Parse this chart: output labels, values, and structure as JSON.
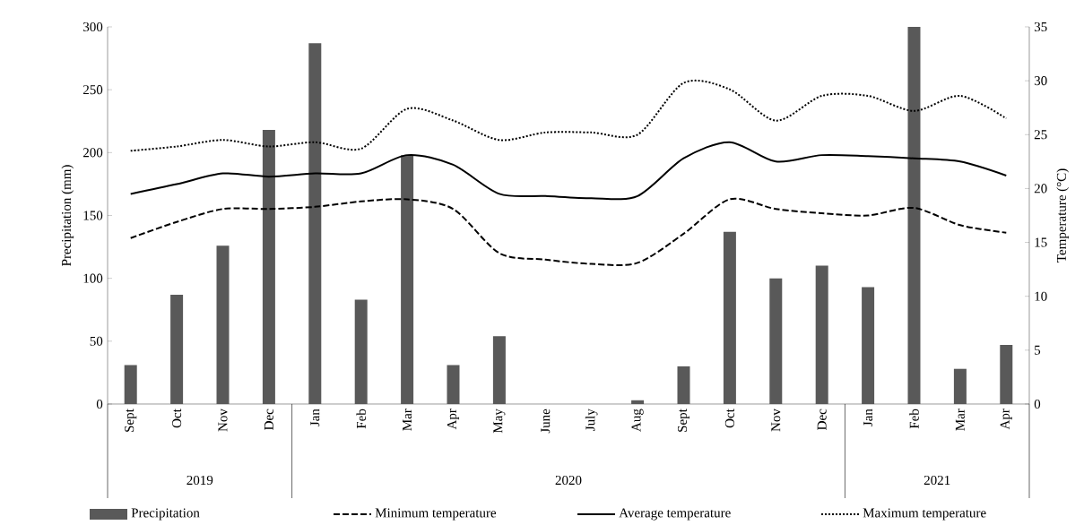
{
  "chart_data": {
    "type": "bar",
    "ylabel": "Precipitation (mm)",
    "y2label": "Temperature (°C)",
    "categories": [
      "Sept",
      "Oct",
      "Nov",
      "Dec",
      "Jan",
      "Feb",
      "Mar",
      "Apr",
      "May",
      "June",
      "July",
      "Aug",
      "Sept",
      "Oct",
      "Nov",
      "Dec",
      "Jan",
      "Feb",
      "Mar",
      "Apr"
    ],
    "series": [
      {
        "name": "Precipitation",
        "color": "#595959",
        "values": [
          31,
          87,
          126,
          218,
          287,
          83,
          198,
          31,
          54,
          0,
          0,
          3,
          30,
          137,
          100,
          110,
          93,
          300,
          28,
          47
        ]
      },
      {
        "name": "Minimum temperature",
        "type": "line",
        "axis": "y2",
        "line_style": "dashed",
        "color": "#000000",
        "values": [
          15.4,
          16.9,
          18.1,
          18.1,
          18.3,
          18.8,
          19.0,
          18.1,
          14.0,
          13.4,
          13.0,
          13.1,
          15.8,
          19.0,
          18.1,
          17.7,
          17.5,
          18.2,
          16.6,
          15.9
        ]
      },
      {
        "name": "Average temperature",
        "type": "line",
        "axis": "y2",
        "line_style": "solid",
        "color": "#000000",
        "values": [
          19.5,
          20.4,
          21.4,
          21.1,
          21.4,
          21.4,
          23.1,
          22.2,
          19.5,
          19.3,
          19.1,
          19.3,
          22.8,
          24.3,
          22.5,
          23.1,
          23.0,
          22.8,
          22.5,
          21.2
        ]
      },
      {
        "name": "Maximum temperature",
        "type": "line",
        "axis": "y2",
        "line_style": "dotted",
        "color": "#000000",
        "values": [
          23.5,
          23.9,
          24.5,
          23.9,
          24.3,
          23.7,
          27.4,
          26.3,
          24.5,
          25.2,
          25.2,
          25.0,
          29.8,
          29.2,
          26.3,
          28.6,
          28.6,
          27.2,
          28.6,
          26.5
        ]
      }
    ],
    "ylim": [
      0,
      300
    ],
    "yticks": [
      0,
      50,
      100,
      150,
      200,
      250,
      300
    ],
    "y2lim": [
      0,
      35
    ],
    "y2ticks": [
      0,
      5,
      10,
      15,
      20,
      25,
      30,
      35
    ],
    "legend": "bottom",
    "annotations": [
      "2019",
      "2020",
      "2021"
    ]
  }
}
